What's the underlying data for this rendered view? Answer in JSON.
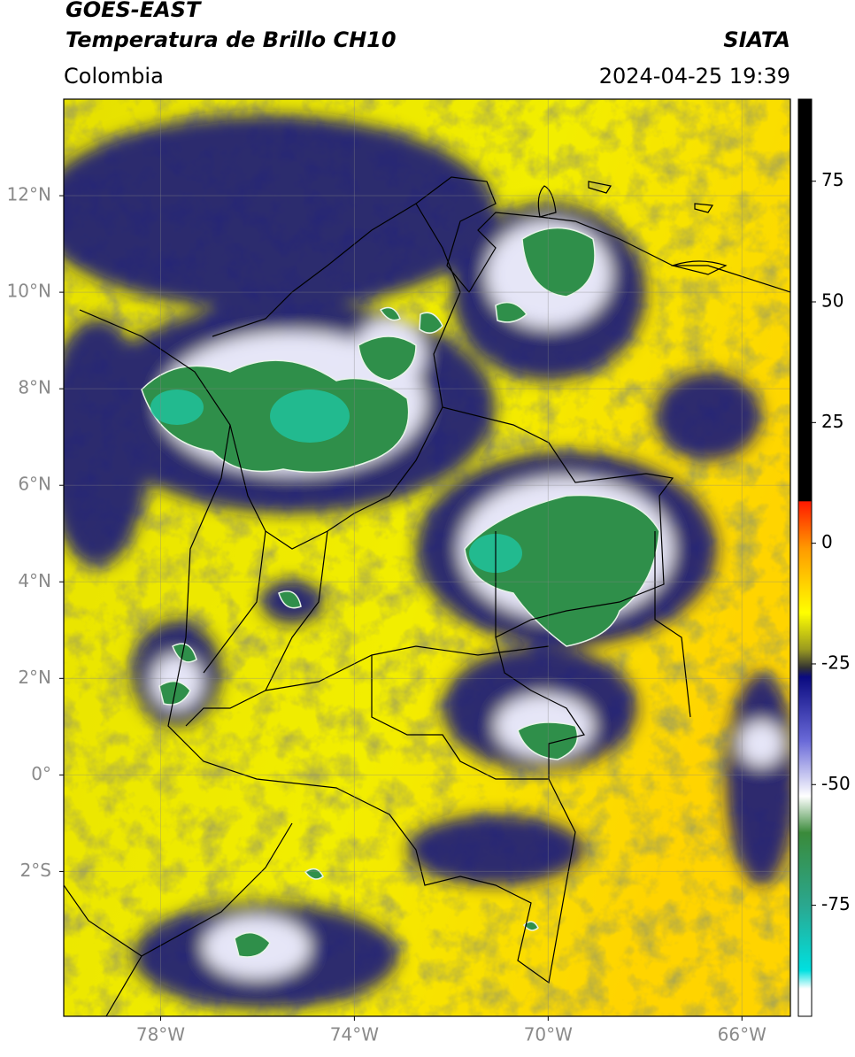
{
  "header": {
    "title": "GOES-EAST",
    "subtitle": "Temperatura de Brillo CH10",
    "source": "SIATA",
    "region": "Colombia",
    "datetime": "2024-04-25 19:39"
  },
  "map": {
    "xlim": [
      -80,
      -65
    ],
    "ylim": [
      -5,
      14
    ],
    "xticks": [
      {
        "value": -78,
        "label": "78°W"
      },
      {
        "value": -74,
        "label": "74°W"
      },
      {
        "value": -70,
        "label": "70°W"
      },
      {
        "value": -66,
        "label": "66°W"
      }
    ],
    "yticks": [
      {
        "value": 12,
        "label": "12°N"
      },
      {
        "value": 10,
        "label": "10°N"
      },
      {
        "value": 8,
        "label": "8°N"
      },
      {
        "value": 6,
        "label": "6°N"
      },
      {
        "value": 4,
        "label": "4°N"
      },
      {
        "value": 2,
        "label": "2°N"
      },
      {
        "value": 0,
        "label": "0°"
      },
      {
        "value": -2,
        "label": "2°S"
      }
    ],
    "grid": true,
    "colorbar": {
      "lim": [
        -98,
        92
      ],
      "ticks": [
        75,
        50,
        25,
        0,
        -25,
        -50,
        -75
      ]
    }
  }
}
